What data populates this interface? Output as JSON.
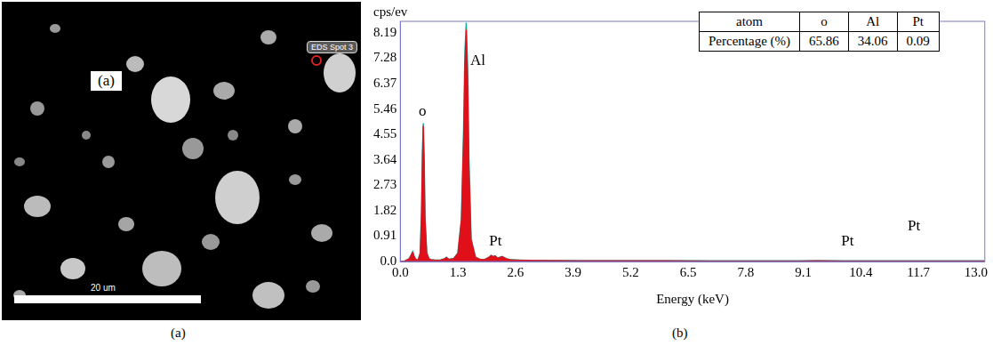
{
  "image_panel": {
    "label": "(a)",
    "spot_label": "EDS Spot 3",
    "scale_bar": "20 um"
  },
  "captions": [
    "(a)",
    "(b)"
  ],
  "chart_data": {
    "type": "line",
    "y_label": "cps/ev",
    "x_label": "Energy (keV)",
    "x": [
      0,
      0.1,
      0.2,
      0.25,
      0.28,
      0.31,
      0.35,
      0.4,
      0.45,
      0.48,
      0.5,
      0.52,
      0.54,
      0.56,
      0.6,
      0.65,
      0.7,
      0.8,
      0.9,
      1.0,
      1.04,
      1.1,
      1.2,
      1.3,
      1.38,
      1.43,
      1.46,
      1.49,
      1.52,
      1.55,
      1.6,
      1.7,
      1.8,
      1.9,
      2.0,
      2.05,
      2.1,
      2.15,
      2.2,
      2.3,
      2.4,
      2.5,
      2.7,
      3.0,
      4,
      5,
      6,
      7,
      8,
      9,
      9.44,
      10,
      11,
      11.07,
      12,
      13,
      13.2
    ],
    "series": [
      {
        "color": "#1aa8a0",
        "values": [
          0,
          0.02,
          0.1,
          0.25,
          0.35,
          0.2,
          0.08,
          0.05,
          0.3,
          1.8,
          3.9,
          4.95,
          3.7,
          1.5,
          0.3,
          0.1,
          0.06,
          0.05,
          0.05,
          0.1,
          0.15,
          0.08,
          0.1,
          0.3,
          1.5,
          4.7,
          7.5,
          8.55,
          7.0,
          3.7,
          0.8,
          0.15,
          0.08,
          0.07,
          0.15,
          0.22,
          0.18,
          0.2,
          0.12,
          0.18,
          0.1,
          0.06,
          0.05,
          0.04,
          0.03,
          0.03,
          0.03,
          0.02,
          0.02,
          0.02,
          0.03,
          0.02,
          0.02,
          0.02,
          0.02,
          0.02,
          0.02
        ]
      },
      {
        "color": "#e0101a",
        "values": [
          0,
          0.02,
          0.1,
          0.25,
          0.35,
          0.2,
          0.08,
          0.05,
          0.3,
          1.8,
          3.8,
          4.85,
          3.6,
          1.5,
          0.3,
          0.1,
          0.06,
          0.05,
          0.05,
          0.1,
          0.15,
          0.08,
          0.1,
          0.3,
          1.5,
          4.5,
          7.2,
          8.3,
          6.8,
          3.5,
          0.8,
          0.15,
          0.08,
          0.07,
          0.15,
          0.22,
          0.18,
          0.2,
          0.12,
          0.18,
          0.1,
          0.06,
          0.05,
          0.04,
          0.03,
          0.03,
          0.03,
          0.02,
          0.02,
          0.02,
          0.03,
          0.02,
          0.02,
          0.02,
          0.02,
          0.02,
          0.02
        ]
      }
    ],
    "xlim": [
      0,
      13.2
    ],
    "ylim": [
      0,
      8.6
    ],
    "xticks": [
      {
        "value": 0,
        "label": "0.0"
      },
      1.3,
      2.6,
      3.9,
      5.2,
      6.5,
      7.8,
      9.1,
      10.4,
      11.7,
      {
        "value": 13,
        "label": "13.0"
      }
    ],
    "yticks": [
      {
        "value": 0,
        "label": "0.0"
      },
      0.91,
      1.82,
      2.73,
      3.64,
      4.55,
      5.46,
      6.37,
      7.28,
      8.19
    ],
    "grid": false,
    "annotations": [
      {
        "text": "o",
        "x": 0.5,
        "y": 5.1
      },
      {
        "text": "Al",
        "x": 1.75,
        "y": 6.9
      },
      {
        "text": "Pt",
        "x": 2.15,
        "y": 0.45
      },
      {
        "text": "Pt",
        "x": 10.1,
        "y": 0.45
      },
      {
        "text": "Pt",
        "x": 11.6,
        "y": 1.0
      }
    ],
    "table": {
      "rows": [
        [
          "atom",
          "o",
          "Al",
          "Pt"
        ],
        [
          "Percentage (%)",
          "65.86",
          "34.06",
          "0.09"
        ]
      ]
    }
  }
}
